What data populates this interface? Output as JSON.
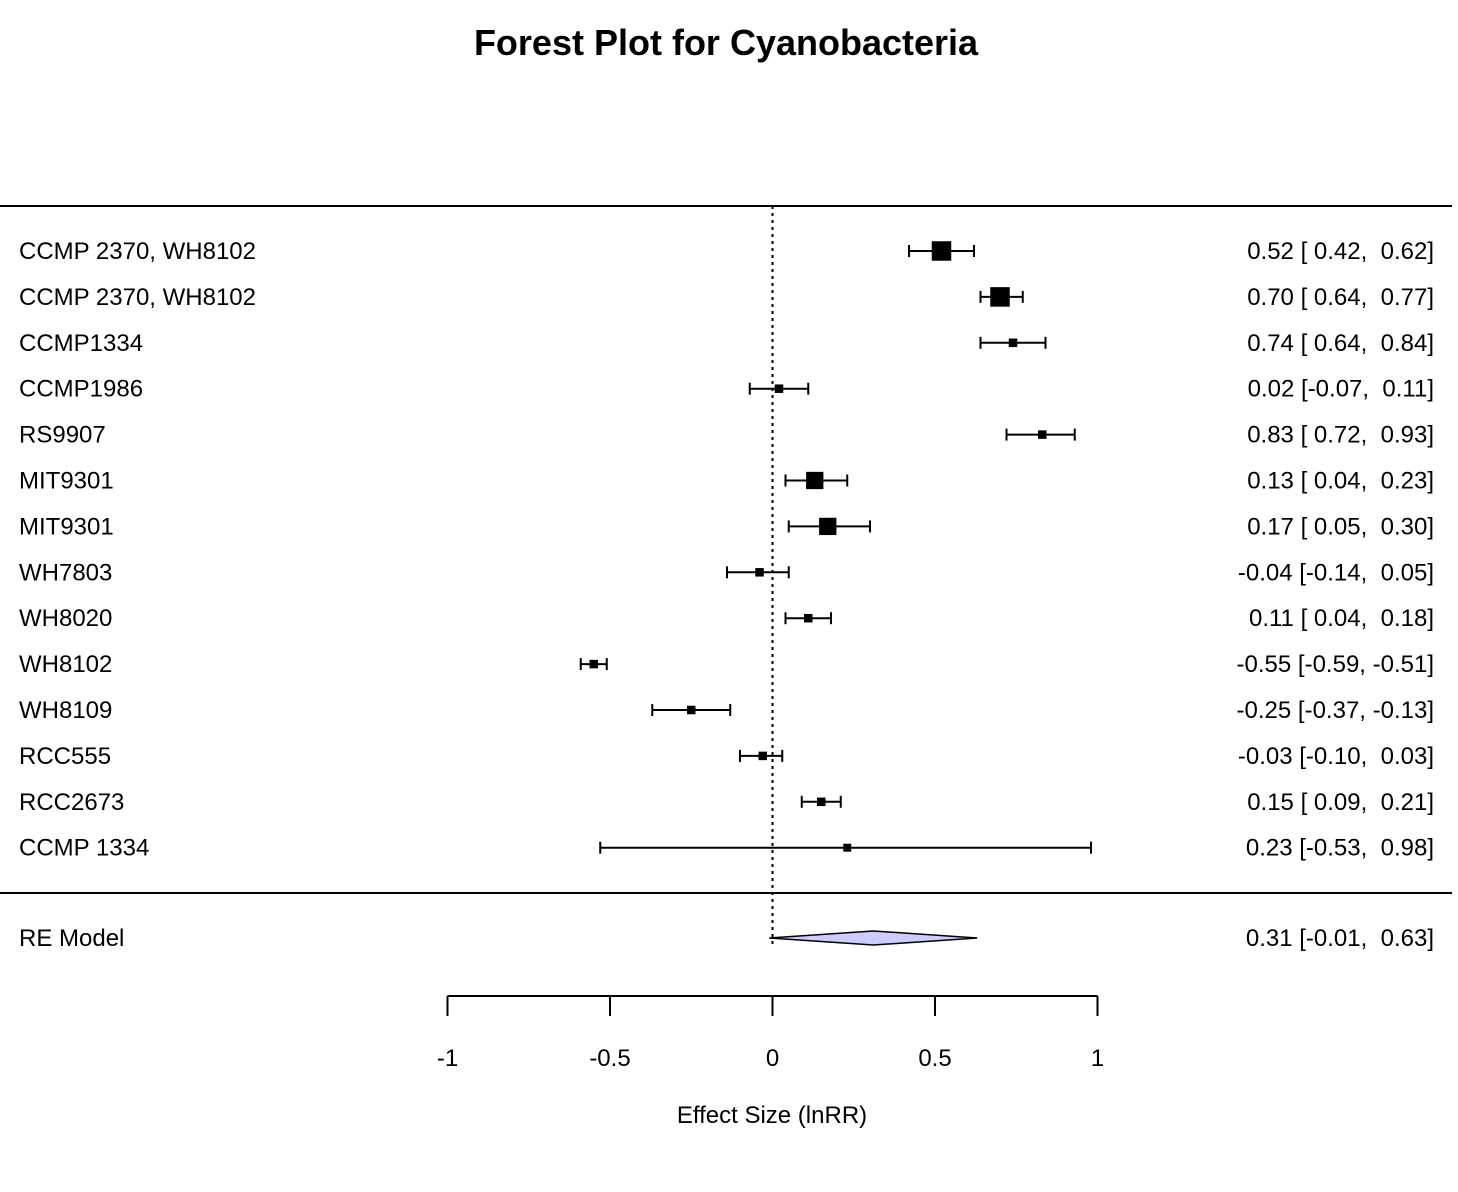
{
  "chart_data": {
    "type": "forest",
    "title": "Forest Plot for Cyanobacteria",
    "xlabel": "Effect Size (lnRR)",
    "xlim": [
      -1,
      1
    ],
    "xticks": [
      -1,
      -0.5,
      0,
      0.5,
      1
    ],
    "xtick_labels": [
      "-1",
      "-0.5",
      "0",
      "0.5",
      "1"
    ],
    "reference_line": 0,
    "studies": [
      {
        "label": "CCMP 2370, WH8102",
        "estimate": 0.52,
        "lower": 0.42,
        "upper": 0.62,
        "ci_text": "0.52 [ 0.42,  0.62]",
        "weight": 3
      },
      {
        "label": "CCMP 2370, WH8102",
        "estimate": 0.7,
        "lower": 0.64,
        "upper": 0.77,
        "ci_text": "0.70 [ 0.64,  0.77]",
        "weight": 3
      },
      {
        "label": "CCMP1334",
        "estimate": 0.74,
        "lower": 0.64,
        "upper": 0.84,
        "ci_text": "0.74 [ 0.64,  0.84]",
        "weight": 1
      },
      {
        "label": "CCMP1986",
        "estimate": 0.02,
        "lower": -0.07,
        "upper": 0.11,
        "ci_text": "0.02 [-0.07,  0.11]",
        "weight": 1
      },
      {
        "label": "RS9907",
        "estimate": 0.83,
        "lower": 0.72,
        "upper": 0.93,
        "ci_text": "0.83 [ 0.72,  0.93]",
        "weight": 1
      },
      {
        "label": "MIT9301",
        "estimate": 0.13,
        "lower": 0.04,
        "upper": 0.23,
        "ci_text": "0.13 [ 0.04,  0.23]",
        "weight": 2.6
      },
      {
        "label": "MIT9301",
        "estimate": 0.17,
        "lower": 0.05,
        "upper": 0.3,
        "ci_text": "0.17 [ 0.05,  0.30]",
        "weight": 2.6
      },
      {
        "label": "WH7803",
        "estimate": -0.04,
        "lower": -0.14,
        "upper": 0.05,
        "ci_text": "-0.04 [-0.14,  0.05]",
        "weight": 1
      },
      {
        "label": "WH8020",
        "estimate": 0.11,
        "lower": 0.04,
        "upper": 0.18,
        "ci_text": "0.11 [ 0.04,  0.18]",
        "weight": 1
      },
      {
        "label": "WH8102",
        "estimate": -0.55,
        "lower": -0.59,
        "upper": -0.51,
        "ci_text": "-0.55 [-0.59, -0.51]",
        "weight": 1
      },
      {
        "label": "WH8109",
        "estimate": -0.25,
        "lower": -0.37,
        "upper": -0.13,
        "ci_text": "-0.25 [-0.37, -0.13]",
        "weight": 1
      },
      {
        "label": "RCC555",
        "estimate": -0.03,
        "lower": -0.1,
        "upper": 0.03,
        "ci_text": "-0.03 [-0.10,  0.03]",
        "weight": 1
      },
      {
        "label": "RCC2673",
        "estimate": 0.15,
        "lower": 0.09,
        "upper": 0.21,
        "ci_text": "0.15 [ 0.09,  0.21]",
        "weight": 1
      },
      {
        "label": "CCMP 1334",
        "estimate": 0.23,
        "lower": -0.53,
        "upper": 0.98,
        "ci_text": "0.23 [-0.53,  0.98]",
        "weight": 0.9
      }
    ],
    "summary": {
      "label": "RE Model",
      "estimate": 0.31,
      "lower": -0.01,
      "upper": 0.63,
      "ci_text": "0.31 [-0.01,  0.63]"
    },
    "colors": {
      "summary_fill": "#ccccff",
      "ink": "#000000"
    }
  }
}
